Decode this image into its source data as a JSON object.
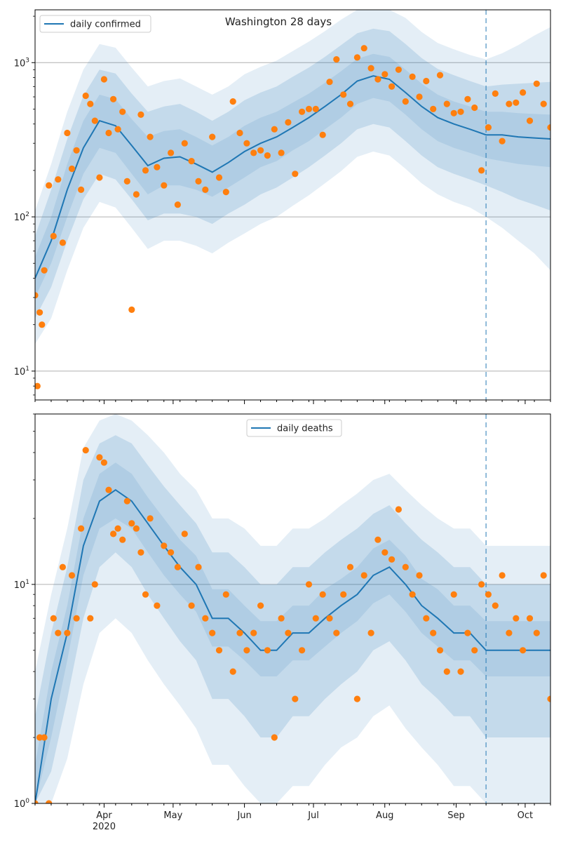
{
  "title": "Washington 28 days",
  "colors": {
    "line": "#1f77b4",
    "band": "#1f77b4",
    "points": "#ff7f0e",
    "grid": "#b0b0b0",
    "vline": "#1f77b4"
  },
  "x_axis": {
    "month_labels": [
      "Apr",
      "May",
      "Jun",
      "Jul",
      "Aug",
      "Sep",
      "Oct"
    ],
    "year_label": "2020",
    "xlim": [
      "2020-03-02",
      "2020-10-12"
    ],
    "forecast_start": "2020-09-14"
  },
  "chart_data": [
    {
      "type": "line",
      "legend": "daily confirmed",
      "legend_position": "top-left",
      "yscale": "log",
      "ylim": [
        6.5,
        2200
      ],
      "ytick_labels": [
        {
          "value": 10,
          "label": "10^1"
        },
        {
          "value": 100,
          "label": "10^2"
        },
        {
          "value": 1000,
          "label": "10^3"
        }
      ],
      "grid": "y-major",
      "model_curve": {
        "x": [
          "2020-03-02",
          "2020-03-09",
          "2020-03-16",
          "2020-03-23",
          "2020-03-30",
          "2020-04-06",
          "2020-04-13",
          "2020-04-20",
          "2020-04-27",
          "2020-05-04",
          "2020-05-11",
          "2020-05-18",
          "2020-05-25",
          "2020-06-01",
          "2020-06-08",
          "2020-06-15",
          "2020-06-22",
          "2020-06-29",
          "2020-07-06",
          "2020-07-13",
          "2020-07-20",
          "2020-07-27",
          "2020-08-03",
          "2020-08-10",
          "2020-08-17",
          "2020-08-24",
          "2020-08-31",
          "2020-09-07",
          "2020-09-14",
          "2020-09-21",
          "2020-09-28",
          "2020-10-05",
          "2020-10-12"
        ],
        "y": [
          40,
          70,
          150,
          280,
          420,
          390,
          290,
          215,
          240,
          245,
          220,
          195,
          225,
          265,
          300,
          330,
          380,
          440,
          520,
          620,
          760,
          820,
          780,
          640,
          520,
          440,
          400,
          370,
          340,
          340,
          330,
          325,
          320
        ]
      },
      "observed": {
        "x": [
          "2020-03-02",
          "2020-03-03",
          "2020-03-04",
          "2020-03-05",
          "2020-03-06",
          "2020-03-08",
          "2020-03-10",
          "2020-03-12",
          "2020-03-14",
          "2020-03-16",
          "2020-03-18",
          "2020-03-20",
          "2020-03-22",
          "2020-03-24",
          "2020-03-26",
          "2020-03-28",
          "2020-03-30",
          "2020-04-01",
          "2020-04-03",
          "2020-04-05",
          "2020-04-07",
          "2020-04-09",
          "2020-04-11",
          "2020-04-13",
          "2020-04-15",
          "2020-04-17",
          "2020-04-19",
          "2020-04-21",
          "2020-04-24",
          "2020-04-27",
          "2020-04-30",
          "2020-05-03",
          "2020-05-06",
          "2020-05-09",
          "2020-05-12",
          "2020-05-15",
          "2020-05-18",
          "2020-05-21",
          "2020-05-24",
          "2020-05-27",
          "2020-05-30",
          "2020-06-02",
          "2020-06-05",
          "2020-06-08",
          "2020-06-11",
          "2020-06-14",
          "2020-06-17",
          "2020-06-20",
          "2020-06-23",
          "2020-06-26",
          "2020-06-29",
          "2020-07-02",
          "2020-07-05",
          "2020-07-08",
          "2020-07-11",
          "2020-07-14",
          "2020-07-17",
          "2020-07-20",
          "2020-07-23",
          "2020-07-26",
          "2020-07-29",
          "2020-08-01",
          "2020-08-04",
          "2020-08-07",
          "2020-08-10",
          "2020-08-13",
          "2020-08-16",
          "2020-08-19",
          "2020-08-22",
          "2020-08-25",
          "2020-08-28",
          "2020-08-31",
          "2020-09-03",
          "2020-09-06",
          "2020-09-09",
          "2020-09-12",
          "2020-09-15",
          "2020-09-18",
          "2020-09-21",
          "2020-09-24",
          "2020-09-27",
          "2020-09-30",
          "2020-10-03",
          "2020-10-06",
          "2020-10-09",
          "2020-10-12"
        ],
        "y": [
          31,
          8,
          24,
          20,
          45,
          160,
          75,
          175,
          68,
          350,
          205,
          270,
          150,
          610,
          540,
          420,
          180,
          780,
          350,
          580,
          370,
          480,
          170,
          25,
          140,
          460,
          200,
          330,
          210,
          160,
          260,
          120,
          300,
          230,
          170,
          150,
          330,
          180,
          145,
          560,
          350,
          300,
          260,
          270,
          250,
          370,
          260,
          410,
          190,
          480,
          500,
          500,
          340,
          750,
          1050,
          620,
          540,
          1080,
          1240,
          920,
          780,
          840,
          700,
          900,
          560,
          810,
          600,
          760,
          500,
          830,
          540,
          470,
          480,
          580,
          510,
          200,
          380,
          630,
          310,
          540,
          550,
          640,
          420,
          730,
          540,
          380
        ]
      },
      "uncertainty_bands": [
        {
          "lower": [
            30,
            50,
            100,
            190,
            280,
            260,
            190,
            140,
            160,
            160,
            150,
            135,
            155,
            180,
            210,
            230,
            270,
            310,
            370,
            440,
            540,
            590,
            560,
            460,
            370,
            310,
            280,
            260,
            240,
            230,
            220,
            215,
            210
          ],
          "upper": [
            55,
            100,
            220,
            420,
            620,
            580,
            430,
            330,
            360,
            370,
            330,
            290,
            330,
            390,
            440,
            480,
            550,
            630,
            740,
            880,
            1060,
            1140,
            1090,
            900,
            730,
            620,
            560,
            520,
            480,
            480,
            470,
            465,
            460
          ]
        },
        {
          "lower": [
            22,
            35,
            70,
            130,
            190,
            175,
            130,
            95,
            105,
            105,
            100,
            90,
            105,
            120,
            140,
            155,
            180,
            210,
            250,
            300,
            370,
            400,
            380,
            310,
            250,
            210,
            190,
            175,
            160,
            145,
            130,
            120,
            110
          ],
          "upper": [
            75,
            150,
            320,
            610,
            900,
            850,
            630,
            480,
            520,
            540,
            480,
            420,
            480,
            570,
            640,
            700,
            810,
            930,
            1090,
            1300,
            1550,
            1660,
            1600,
            1320,
            1070,
            910,
            830,
            760,
            700,
            720,
            730,
            740,
            750
          ],
          "opacity": 0.16
        },
        {
          "lower": [
            15,
            22,
            45,
            85,
            125,
            115,
            85,
            62,
            70,
            70,
            65,
            58,
            68,
            78,
            90,
            100,
            118,
            138,
            165,
            198,
            245,
            265,
            250,
            205,
            165,
            140,
            125,
            115,
            100,
            85,
            70,
            58,
            45
          ],
          "upper": [
            110,
            220,
            480,
            900,
            1320,
            1250,
            930,
            700,
            760,
            790,
            700,
            620,
            700,
            840,
            940,
            1030,
            1190,
            1370,
            1600,
            1900,
            2200,
            2200,
            2200,
            1950,
            1580,
            1340,
            1220,
            1120,
            1050,
            1150,
            1300,
            1500,
            1700
          ]
        }
      ]
    },
    {
      "type": "line",
      "legend": "daily deaths",
      "legend_position": "top-center",
      "yscale": "log",
      "ylim": [
        1,
        60
      ],
      "ytick_labels": [
        {
          "value": 1,
          "label": "10^0"
        },
        {
          "value": 10,
          "label": "10^1"
        }
      ],
      "grid": "y-major",
      "model_curve": {
        "x": [
          "2020-03-02",
          "2020-03-09",
          "2020-03-16",
          "2020-03-23",
          "2020-03-30",
          "2020-04-06",
          "2020-04-13",
          "2020-04-20",
          "2020-04-27",
          "2020-05-04",
          "2020-05-11",
          "2020-05-18",
          "2020-05-25",
          "2020-06-01",
          "2020-06-08",
          "2020-06-15",
          "2020-06-22",
          "2020-06-29",
          "2020-07-06",
          "2020-07-13",
          "2020-07-20",
          "2020-07-27",
          "2020-08-03",
          "2020-08-10",
          "2020-08-17",
          "2020-08-24",
          "2020-08-31",
          "2020-09-07",
          "2020-09-14",
          "2020-09-21",
          "2020-09-28",
          "2020-10-05",
          "2020-10-12"
        ],
        "y": [
          1,
          3,
          6,
          15,
          24,
          27,
          24,
          19,
          15,
          12,
          10,
          7,
          7,
          6,
          5,
          5,
          6,
          6,
          7,
          8,
          9,
          11,
          12,
          10,
          8,
          7,
          6,
          6,
          5,
          5,
          5,
          5,
          5
        ]
      },
      "observed": {
        "x": [
          "2020-03-02",
          "2020-03-04",
          "2020-03-06",
          "2020-03-08",
          "2020-03-10",
          "2020-03-12",
          "2020-03-14",
          "2020-03-16",
          "2020-03-18",
          "2020-03-20",
          "2020-03-22",
          "2020-03-24",
          "2020-03-26",
          "2020-03-28",
          "2020-03-30",
          "2020-04-01",
          "2020-04-03",
          "2020-04-05",
          "2020-04-07",
          "2020-04-09",
          "2020-04-11",
          "2020-04-13",
          "2020-04-15",
          "2020-04-17",
          "2020-04-19",
          "2020-04-21",
          "2020-04-24",
          "2020-04-27",
          "2020-04-30",
          "2020-05-03",
          "2020-05-06",
          "2020-05-09",
          "2020-05-12",
          "2020-05-15",
          "2020-05-18",
          "2020-05-21",
          "2020-05-24",
          "2020-05-27",
          "2020-05-30",
          "2020-06-02",
          "2020-06-05",
          "2020-06-08",
          "2020-06-11",
          "2020-06-14",
          "2020-06-17",
          "2020-06-20",
          "2020-06-23",
          "2020-06-26",
          "2020-06-29",
          "2020-07-02",
          "2020-07-05",
          "2020-07-08",
          "2020-07-11",
          "2020-07-14",
          "2020-07-17",
          "2020-07-20",
          "2020-07-23",
          "2020-07-26",
          "2020-07-29",
          "2020-08-01",
          "2020-08-04",
          "2020-08-07",
          "2020-08-10",
          "2020-08-13",
          "2020-08-16",
          "2020-08-19",
          "2020-08-22",
          "2020-08-25",
          "2020-08-28",
          "2020-08-31",
          "2020-09-03",
          "2020-09-06",
          "2020-09-09",
          "2020-09-12",
          "2020-09-15",
          "2020-09-18",
          "2020-09-21",
          "2020-09-24",
          "2020-09-27",
          "2020-09-30",
          "2020-10-03",
          "2020-10-06",
          "2020-10-09",
          "2020-10-12"
        ],
        "y": [
          1,
          2,
          2,
          1,
          7,
          6,
          12,
          6,
          11,
          7,
          18,
          41,
          7,
          10,
          38,
          36,
          27,
          17,
          18,
          16,
          24,
          19,
          18,
          14,
          9,
          20,
          8,
          15,
          14,
          12,
          17,
          8,
          12,
          7,
          6,
          5,
          9,
          4,
          6,
          5,
          6,
          8,
          5,
          2,
          7,
          6,
          3,
          5,
          10,
          7,
          9,
          7,
          6,
          9,
          12,
          3,
          11,
          6,
          16,
          14,
          13,
          22,
          12,
          9,
          11,
          7,
          6,
          5,
          4,
          9,
          4,
          6,
          5,
          10,
          9,
          8,
          11,
          6,
          7,
          5,
          7,
          6,
          11,
          3
        ]
      },
      "uncertainty_bands": [
        {
          "lower": [
            1,
            2,
            4.5,
            11,
            18,
            20,
            18,
            14,
            11,
            9,
            7.5,
            5.2,
            5.2,
            4.5,
            3.8,
            3.8,
            4.5,
            4.5,
            5.2,
            6,
            6.8,
            8.2,
            9,
            7.5,
            6,
            5.2,
            4.5,
            4.5,
            3.8,
            3.8,
            3.8,
            3.8,
            3.8
          ],
          "upper": [
            1.5,
            4,
            8,
            20,
            32,
            36,
            32,
            25,
            20,
            16,
            13.5,
            9.5,
            9.5,
            8,
            6.8,
            6.8,
            8,
            8,
            9.5,
            10.6,
            12,
            14.6,
            16,
            13.5,
            10.6,
            9.5,
            8,
            8,
            6.8,
            6.8,
            6.8,
            6.8,
            6.8
          ]
        },
        {
          "lower": [
            1,
            1.4,
            3,
            7,
            12,
            14,
            12,
            9,
            7,
            5.5,
            4.5,
            3,
            3,
            2.5,
            2,
            2,
            2.5,
            2.5,
            3,
            3.5,
            4,
            5,
            5.5,
            4.5,
            3.5,
            3,
            2.5,
            2.5,
            2,
            2,
            2,
            2,
            2
          ],
          "upper": [
            2.5,
            6,
            12,
            30,
            44,
            48,
            44,
            35,
            28,
            23,
            19,
            14,
            14,
            12,
            10,
            10,
            12,
            12,
            14,
            16,
            18,
            21,
            23,
            19,
            16,
            14,
            12,
            12,
            10,
            10,
            10,
            10,
            10
          ],
          "opacity": 0.16
        },
        {
          "lower": [
            1,
            1,
            1.6,
            3.5,
            6,
            7,
            6,
            4.5,
            3.5,
            2.8,
            2.2,
            1.5,
            1.5,
            1.2,
            1,
            1,
            1.2,
            1.2,
            1.5,
            1.8,
            2,
            2.5,
            2.8,
            2.2,
            1.8,
            1.5,
            1.2,
            1.2,
            1,
            1,
            1,
            1,
            1
          ],
          "upper": [
            4,
            9,
            18,
            42,
            56,
            60,
            56,
            48,
            40,
            32,
            27,
            20,
            20,
            18,
            15,
            15,
            18,
            18,
            20,
            23,
            26,
            30,
            32,
            27,
            23,
            20,
            18,
            18,
            15,
            15,
            15,
            15,
            15
          ]
        }
      ]
    }
  ]
}
